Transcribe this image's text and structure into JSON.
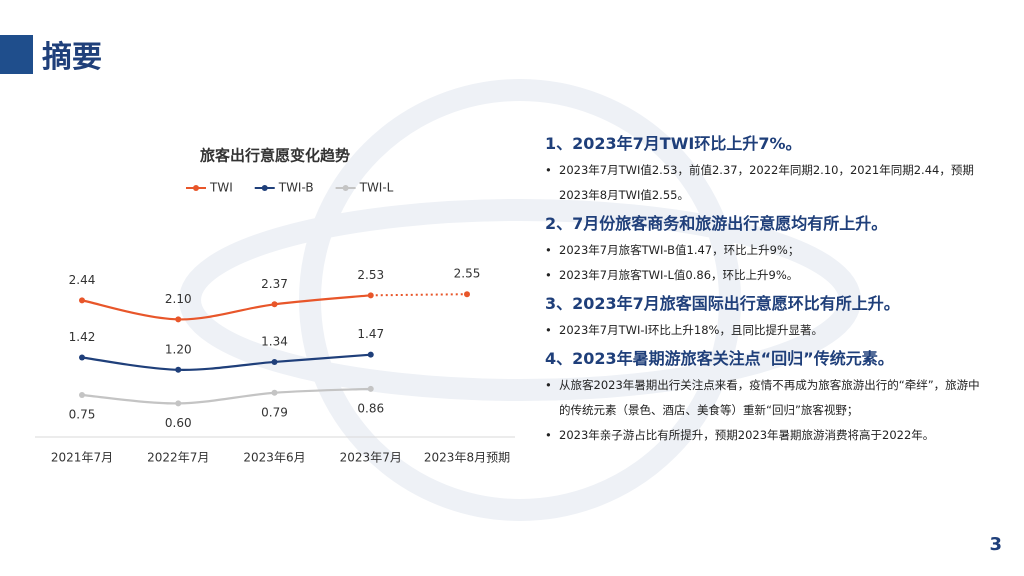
{
  "header": {
    "title": "摘要"
  },
  "chart_data": {
    "type": "line",
    "title": "旅客出行意愿变化趋势",
    "categories": [
      "2021年7月",
      "2022年7月",
      "2023年6月",
      "2023年7月",
      "2023年8月预期"
    ],
    "series": [
      {
        "name": "TWI",
        "color": "#e8562a",
        "values": [
          2.44,
          2.1,
          2.37,
          2.53,
          2.55
        ],
        "value_labels": [
          "2.44",
          "2.10",
          "2.37",
          "2.53",
          "2.55"
        ],
        "label_position": "above",
        "forecast_index": 4
      },
      {
        "name": "TWI-B",
        "color": "#1f3f7a",
        "values": [
          1.42,
          1.2,
          1.34,
          1.47,
          null
        ],
        "value_labels": [
          "1.42",
          "1.20",
          "1.34",
          "1.47",
          null
        ],
        "label_position": "above"
      },
      {
        "name": "TWI-L",
        "color": "#c4c4c4",
        "values": [
          0.75,
          0.6,
          0.79,
          0.86,
          null
        ],
        "value_labels": [
          "0.75",
          "0.60",
          "0.79",
          "0.86",
          null
        ],
        "label_position": "below"
      }
    ],
    "ylim": [
      0,
      3
    ],
    "legend": "top",
    "smooth": true
  },
  "summary": [
    {
      "heading": "1、2023年7月TWI环比上升7%。",
      "bullets": [
        "2023年7月TWI值2.53，前值2.37，2022年同期2.10，2021年同期2.44，预期2023年8月TWI值2.55。"
      ]
    },
    {
      "heading": "2、7月份旅客商务和旅游出行意愿均有所上升。",
      "bullets": [
        "2023年7月旅客TWI-B值1.47，环比上升9%；",
        "2023年7月旅客TWI-L值0.86，环比上升9%。"
      ]
    },
    {
      "heading": "3、2023年7月旅客国际出行意愿环比有所上升。",
      "bullets": [
        "2023年7月TWI-I环比上升18%，且同比提升显著。"
      ]
    },
    {
      "heading": "4、2023年暑期游旅客关注点“回归”传统元素。",
      "bullets": [
        "从旅客2023年暑期出行关注点来看，疫情不再成为旅客旅游出行的“牵绊”，旅游中的传统元素（景色、酒店、美食等）重新“回归”旅客视野；",
        "2023年亲子游占比有所提升，预期2023年暑期旅游消费将高于2022年。"
      ]
    }
  ],
  "page_number": "3"
}
